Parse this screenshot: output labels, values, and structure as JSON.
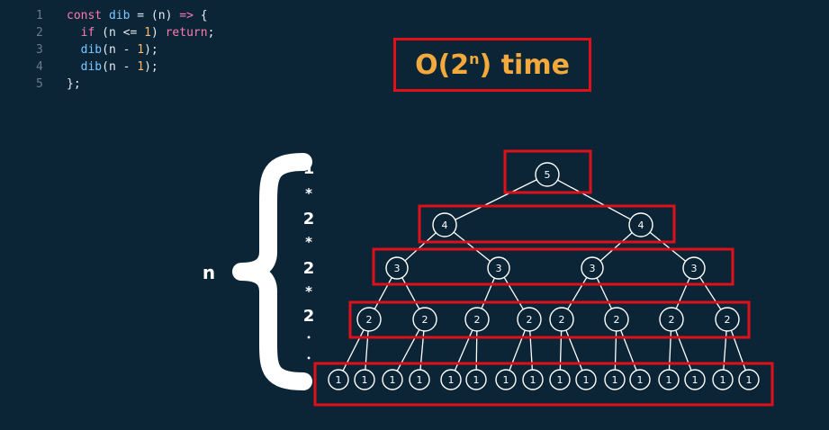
{
  "code": {
    "lines": [
      {
        "num": "1",
        "tokens": [
          [
            "kw",
            "const "
          ],
          [
            "fn",
            "dib"
          ],
          [
            "op",
            " = (n) "
          ],
          [
            "kw",
            "=>"
          ],
          [
            "op",
            " {"
          ]
        ]
      },
      {
        "num": "2",
        "tokens": [
          [
            "op",
            "  "
          ],
          [
            "kw",
            "if"
          ],
          [
            "op",
            " (n <= "
          ],
          [
            "num",
            "1"
          ],
          [
            "op",
            ") "
          ],
          [
            "kw",
            "return"
          ],
          [
            "op",
            ";"
          ]
        ]
      },
      {
        "num": "3",
        "tokens": [
          [
            "op",
            "  "
          ],
          [
            "fn",
            "dib"
          ],
          [
            "op",
            "(n - "
          ],
          [
            "num",
            "1"
          ],
          [
            "op",
            ");"
          ]
        ]
      },
      {
        "num": "4",
        "tokens": [
          [
            "op",
            "  "
          ],
          [
            "fn",
            "dib"
          ],
          [
            "op",
            "(n - "
          ],
          [
            "num",
            "1"
          ],
          [
            "op",
            ");"
          ]
        ]
      },
      {
        "num": "5",
        "tokens": [
          [
            "op",
            "};"
          ]
        ]
      }
    ]
  },
  "complexity": {
    "prefix": "O(2",
    "exponent": "n",
    "suffix": ") time"
  },
  "levels": [
    {
      "value": "5",
      "count": 1
    },
    {
      "value": "4",
      "count": 2
    },
    {
      "value": "3",
      "count": 4
    },
    {
      "value": "2",
      "count": 8
    },
    {
      "value": "1",
      "count": 16
    }
  ],
  "multipliers": [
    "1",
    "*",
    "2",
    "*",
    "2",
    "*",
    "2",
    "•",
    "•",
    "•"
  ],
  "depth_label": "n",
  "colors": {
    "highlight": "#e0101a",
    "accent": "#f3a93c",
    "background": "#0b2537"
  }
}
